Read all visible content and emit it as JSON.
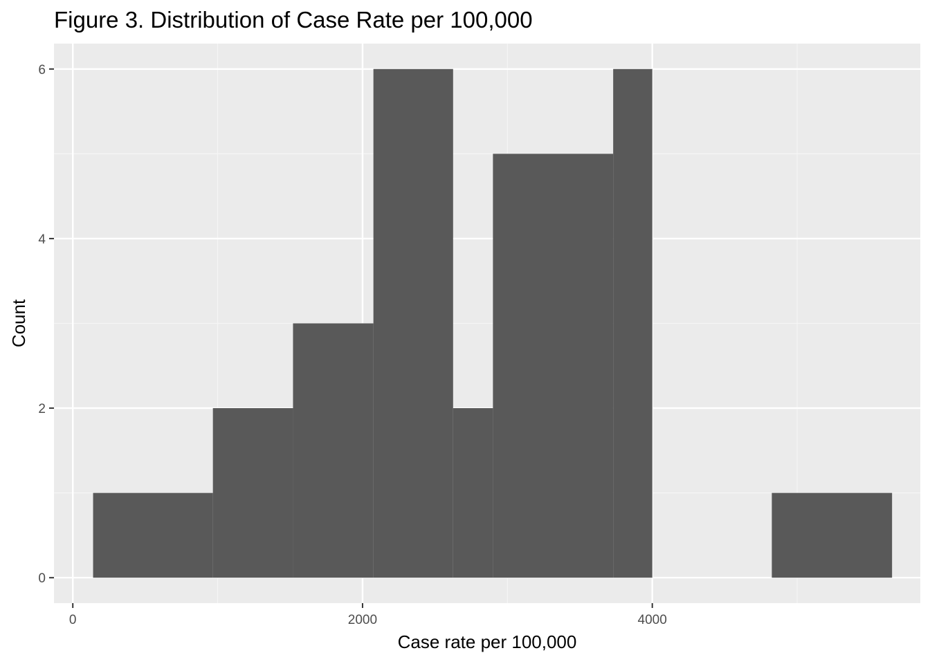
{
  "chart_data": {
    "type": "bar",
    "title": "Figure 3. Distribution of Case Rate per 100,000",
    "xlabel": "Case rate per 100,000",
    "ylabel": "Count",
    "xlim": [
      -130,
      5850
    ],
    "ylim": [
      -0.3,
      6.3
    ],
    "x_ticks": [
      0,
      2000,
      4000
    ],
    "x_tick_labels": [
      "0",
      "2000",
      "4000"
    ],
    "y_ticks": [
      0,
      2,
      4,
      6
    ],
    "y_tick_labels": [
      "0",
      "2",
      "4",
      "6"
    ],
    "grid": true,
    "bins": [
      {
        "x0": 140,
        "x1": 967,
        "count": 1
      },
      {
        "x0": 967,
        "x1": 1520,
        "count": 2
      },
      {
        "x0": 1520,
        "x1": 2075,
        "count": 3
      },
      {
        "x0": 2075,
        "x1": 2625,
        "count": 6
      },
      {
        "x0": 2625,
        "x1": 2900,
        "count": 2
      },
      {
        "x0": 2900,
        "x1": 3730,
        "count": 5
      },
      {
        "x0": 3730,
        "x1": 4000,
        "count": 6
      },
      {
        "x0": 4000,
        "x1": 4825,
        "count": 0
      },
      {
        "x0": 4825,
        "x1": 5655,
        "count": 1
      }
    ],
    "colors": {
      "bar": "#595959",
      "panel_background": "#ebebeb",
      "grid_major": "#ffffff",
      "grid_minor": "#f5f5f5",
      "tick": "#333333"
    }
  }
}
